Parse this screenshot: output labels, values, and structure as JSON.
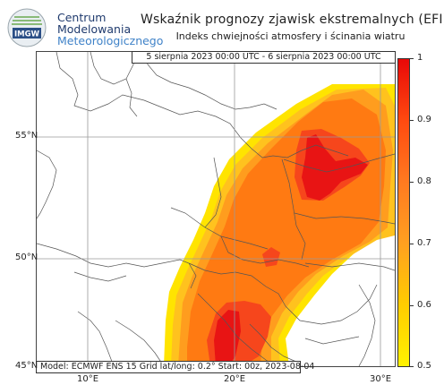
{
  "logo": {
    "badge_text": "IMGW",
    "icon": "imgw-logo-icon"
  },
  "org": {
    "line1": "Centrum",
    "line2": "Modelowania",
    "line3": "Meteorologicznego"
  },
  "title": "Wskaźnik prognozy zjawisk ekstremalnych (EFI)",
  "subtitle": "Indeks chwiejności atmosfery i ścinania wiatru",
  "date_range": "5 sierpnia 2023 00:00 UTC - 6 sierpnia 2023 00:00 UTC",
  "footer": "Model: ECMWF  ENS 15  Grid lat/long: 0.2°  Start: 00z, 2023-08-04",
  "latitude_labels": [
    "55°N",
    "50°N",
    "45°N"
  ],
  "longitude_labels": [
    "10°E",
    "20°E",
    "30°E"
  ],
  "colorbar": {
    "labels": [
      "1",
      "0.9",
      "0.8",
      "0.7",
      "0.6",
      "0.5"
    ],
    "min": 0.5,
    "max": 1,
    "colors": [
      "#fff200",
      "#ffcc00",
      "#ffa020",
      "#ff7a20",
      "#ff4a10",
      "#e80808"
    ]
  },
  "colors": {
    "efi_05": "#ffe400",
    "efi_06": "#ffc21e",
    "efi_07": "#ff9d1e",
    "efi_08": "#ff7a12",
    "efi_09": "#f6461c",
    "efi_10": "#e81414",
    "gridline": "#9a9a9a",
    "border": "#555555"
  }
}
